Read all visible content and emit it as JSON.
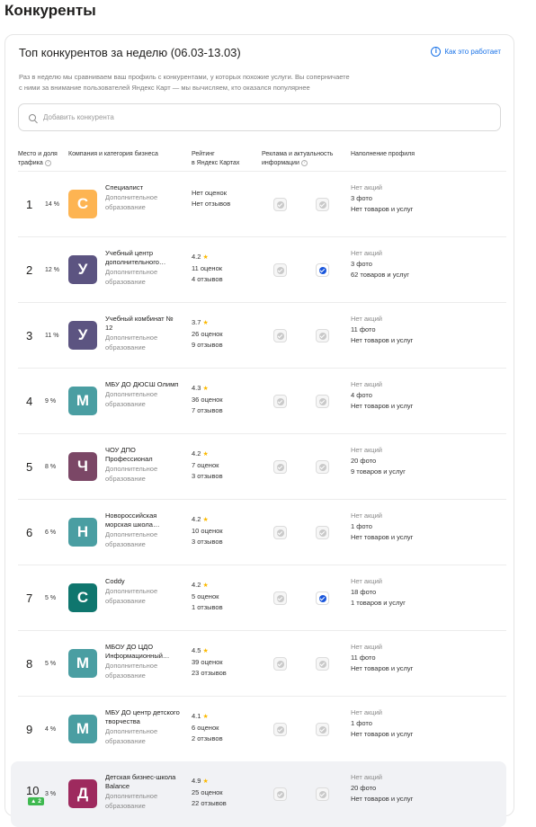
{
  "page_title": "Конкуренты",
  "card": {
    "title": "Топ конкурентов за неделю (06.03-13.03)",
    "how_link": "Как это работает",
    "desc_line1": "Раз в неделю мы сравниваем ваш профиль с конкурентами, у которых похожие услуги. Вы соперничаете",
    "desc_line2": "с ними за внимание пользователей Яндекс Карт — мы вычисляем, кто оказался популярнее",
    "search_placeholder": "Добавить конкурента"
  },
  "columns": {
    "place_1": "Место и доля",
    "place_2": "трафика",
    "company": "Компания и категория бизнеса",
    "rating_1": "Рейтинг",
    "rating_2": "в Яндекс Картах",
    "ads_1": "Реклама и актуальность",
    "ads_2": "информации",
    "profile": "Наполнение профиля"
  },
  "colors": {
    "accent": "#1a56db",
    "star": "#fcb900",
    "trend": "#3fb950"
  },
  "rows": [
    {
      "place": "1",
      "share": "14 %",
      "letter": "С",
      "color": "#fdb452",
      "name": "Специалист",
      "category": "Дополнительное образование",
      "rating": "",
      "reviews_count": "Нет оценок",
      "feedback": "Нет отзывов",
      "ad": false,
      "info": false,
      "promos": "Нет акций",
      "photos": "3 фото",
      "goods": "Нет товаров и услуг"
    },
    {
      "place": "2",
      "share": "12 %",
      "letter": "У",
      "color": "#5c5481",
      "name": "Учебный центр дополнительного…",
      "category": "Дополнительное образование",
      "rating": "4.2",
      "reviews_count": "11 оценок",
      "feedback": "4 отзывов",
      "ad": false,
      "info": true,
      "promos": "Нет акций",
      "photos": "3 фото",
      "goods": "62 товаров и услуг"
    },
    {
      "place": "3",
      "share": "11 %",
      "letter": "У",
      "color": "#5c5481",
      "name": "Учебный комбинат № 12",
      "category": "Дополнительное образование",
      "rating": "3.7",
      "reviews_count": "26 оценок",
      "feedback": "9 отзывов",
      "ad": false,
      "info": false,
      "promos": "Нет акций",
      "photos": "11 фото",
      "goods": "Нет товаров и услуг"
    },
    {
      "place": "4",
      "share": "9 %",
      "letter": "М",
      "color": "#4a9ea2",
      "name": "МБУ ДО ДЮСШ Олимп",
      "category": "Дополнительное образование",
      "rating": "4.3",
      "reviews_count": "36 оценок",
      "feedback": "7 отзывов",
      "ad": false,
      "info": false,
      "promos": "Нет акций",
      "photos": "4 фото",
      "goods": "Нет товаров и услуг"
    },
    {
      "place": "5",
      "share": "8 %",
      "letter": "Ч",
      "color": "#7b4766",
      "name": "ЧОУ ДПО Профессионал",
      "category": "Дополнительное образование",
      "rating": "4.2",
      "reviews_count": "7 оценок",
      "feedback": "3 отзывов",
      "ad": false,
      "info": false,
      "promos": "Нет акций",
      "photos": "20 фото",
      "goods": "9 товаров и услуг"
    },
    {
      "place": "6",
      "share": "6 %",
      "letter": "Н",
      "color": "#4a9ea2",
      "name": "Новороссийская морская школа…",
      "category": "Дополнительное образование",
      "rating": "4.2",
      "reviews_count": "10 оценок",
      "feedback": "3 отзывов",
      "ad": false,
      "info": false,
      "promos": "Нет акций",
      "photos": "1 фото",
      "goods": "Нет товаров и услуг"
    },
    {
      "place": "7",
      "share": "5 %",
      "letter": "С",
      "color": "#0f766e",
      "name": "Coddy",
      "category": "Дополнительное образование",
      "rating": "4.2",
      "reviews_count": "5 оценок",
      "feedback": "1 отзывов",
      "ad": false,
      "info": true,
      "promos": "Нет акций",
      "photos": "18 фото",
      "goods": "1 товаров и услуг"
    },
    {
      "place": "8",
      "share": "5 %",
      "letter": "М",
      "color": "#4a9ea2",
      "name": "МБОУ ДО ЦДО Информационный…",
      "category": "Дополнительное образование",
      "rating": "4.5",
      "reviews_count": "39 оценок",
      "feedback": "23 отзывов",
      "ad": false,
      "info": false,
      "promos": "Нет акций",
      "photos": "11 фото",
      "goods": "Нет товаров и услуг"
    },
    {
      "place": "9",
      "share": "4 %",
      "letter": "М",
      "color": "#4a9ea2",
      "name": "МБУ ДО центр детского творчества",
      "category": "Дополнительное образование",
      "rating": "4.1",
      "reviews_count": "6 оценок",
      "feedback": "2 отзывов",
      "ad": false,
      "info": false,
      "promos": "Нет акций",
      "photos": "1 фото",
      "goods": "Нет товаров и услуг"
    },
    {
      "place": "10",
      "share": "3 %",
      "trend": "▲ 2",
      "letter": "Д",
      "color": "#9e2a5e",
      "name": "Детская бизнес-школа Balance",
      "category": "Дополнительное образование",
      "rating": "4.9",
      "reviews_count": "25 оценок",
      "feedback": "22 отзывов",
      "ad": false,
      "info": false,
      "promos": "Нет акций",
      "photos": "20 фото",
      "goods": "Нет товаров и услуг",
      "highlighted": true
    }
  ]
}
